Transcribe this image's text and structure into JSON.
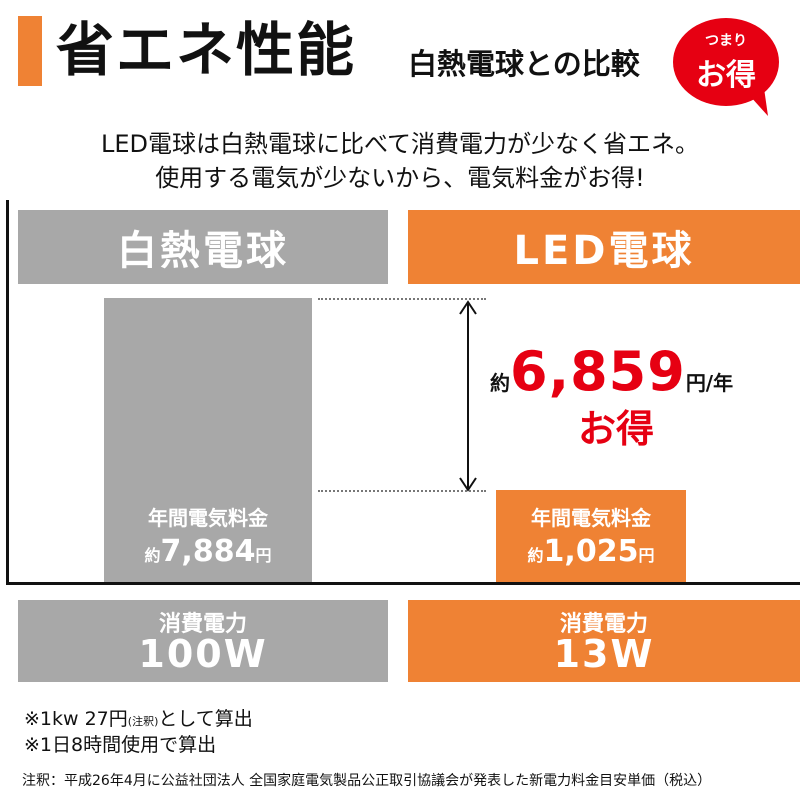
{
  "header": {
    "title": "省エネ性能",
    "subtitle": "白熱電球との比較",
    "badge_top": "つまり",
    "badge_main": "お得"
  },
  "intro": {
    "line1": "LED電球は白熱電球に比べて消費電力が少なく省エネ。",
    "line2": "使用する電気が少ないから、電気料金がお得!"
  },
  "comparison": {
    "incandescent": {
      "name": "白熱電球",
      "cost_label": "年間電気料金",
      "cost_prefix": "約",
      "cost_value": "7,884",
      "cost_unit": "円",
      "power_label": "消費電力",
      "power_value": "100W"
    },
    "led": {
      "name": "LED電球",
      "cost_label": "年間電気料金",
      "cost_prefix": "約",
      "cost_value": "1,025",
      "cost_unit": "円",
      "power_label": "消費電力",
      "power_value": "13W"
    },
    "saving": {
      "prefix": "約",
      "amount": "6,859",
      "unit": "円/年",
      "label": "お得"
    }
  },
  "notes": {
    "note1_main": "※1kw 27円",
    "note1_small": "(注釈)",
    "note1_end": "として算出",
    "note2": "※1日8時間使用で算出",
    "footnote": "注釈：平成26年4月に公益社団法人 全国家庭電気製品公正取引協議会が発表した新電力料金目安単価（税込）"
  },
  "colors": {
    "orange": "#EF8234",
    "gray": "#A8A8A8",
    "red": "#E60012"
  }
}
